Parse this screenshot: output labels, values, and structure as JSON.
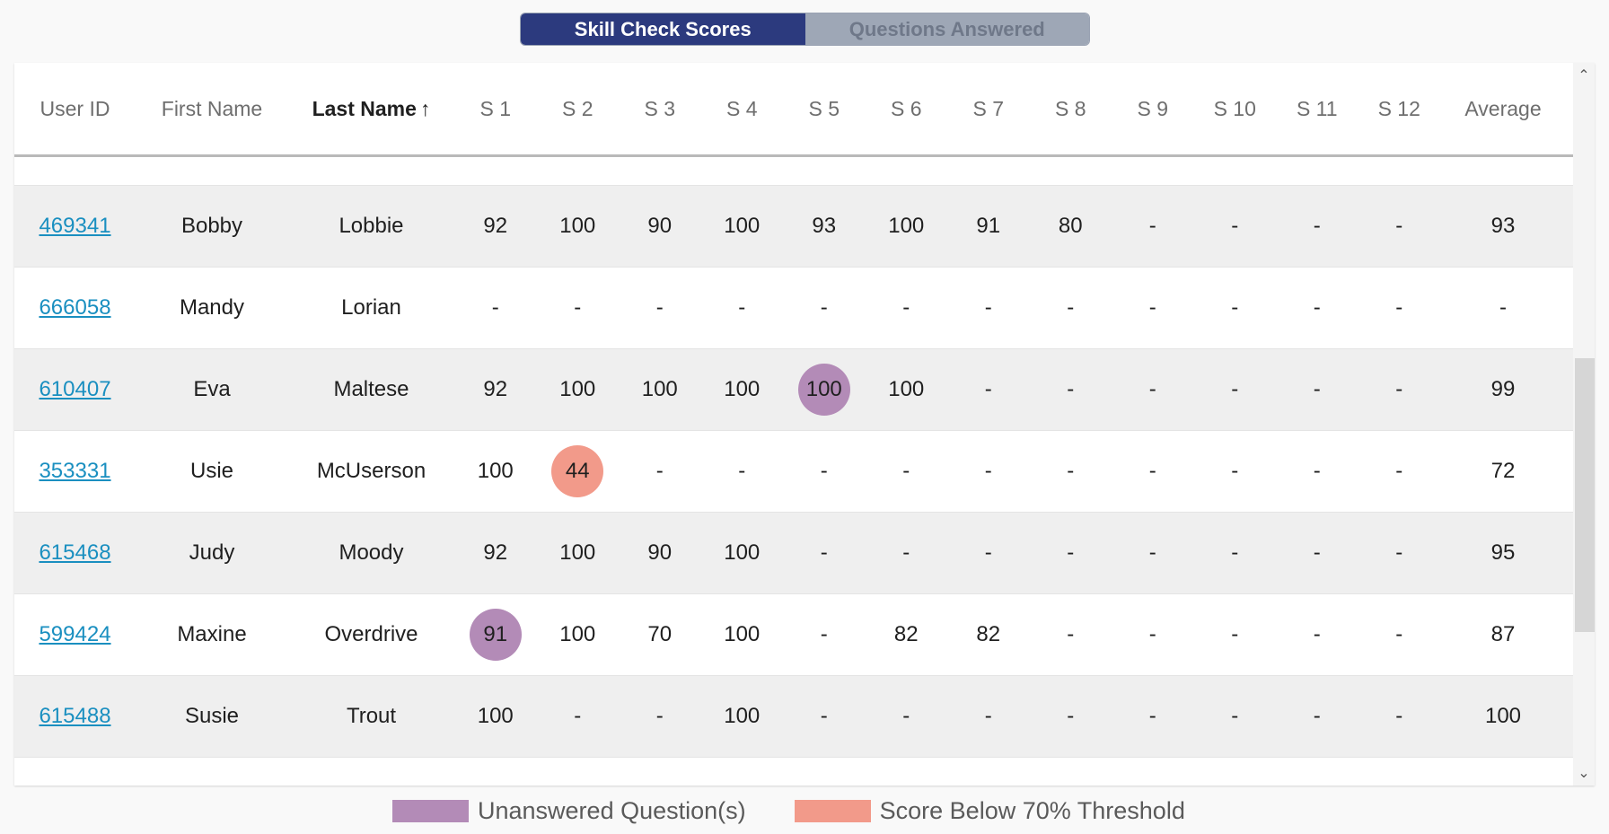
{
  "toggle": {
    "active_label": "Skill Check Scores",
    "inactive_label": "Questions Answered"
  },
  "table": {
    "headers": {
      "user_id": "User ID",
      "first_name": "First Name",
      "last_name": "Last Name",
      "sort_arrow": "↑",
      "skills": [
        "S 1",
        "S 2",
        "S 3",
        "S 4",
        "S 5",
        "S 6",
        "S 7",
        "S 8",
        "S 9",
        "S 10",
        "S 11",
        "S 12"
      ],
      "average": "Average"
    },
    "rows": [
      {
        "id": "469341",
        "first": "Bobby",
        "last": "Lobbie",
        "scores": [
          "92",
          "100",
          "90",
          "100",
          "93",
          "100",
          "91",
          "80",
          "-",
          "-",
          "-",
          "-"
        ],
        "average": "93",
        "flags": {}
      },
      {
        "id": "666058",
        "first": "Mandy",
        "last": "Lorian",
        "scores": [
          "-",
          "-",
          "-",
          "-",
          "-",
          "-",
          "-",
          "-",
          "-",
          "-",
          "-",
          "-"
        ],
        "average": "-",
        "flags": {}
      },
      {
        "id": "610407",
        "first": "Eva",
        "last": "Maltese",
        "scores": [
          "92",
          "100",
          "100",
          "100",
          "100",
          "100",
          "-",
          "-",
          "-",
          "-",
          "-",
          "-"
        ],
        "average": "99",
        "flags": {
          "4": "unanswered"
        }
      },
      {
        "id": "353331",
        "first": "Usie",
        "last": "McUserson",
        "scores": [
          "100",
          "44",
          "-",
          "-",
          "-",
          "-",
          "-",
          "-",
          "-",
          "-",
          "-",
          "-"
        ],
        "average": "72",
        "flags": {
          "1": "below"
        }
      },
      {
        "id": "615468",
        "first": "Judy",
        "last": "Moody",
        "scores": [
          "92",
          "100",
          "90",
          "100",
          "-",
          "-",
          "-",
          "-",
          "-",
          "-",
          "-",
          "-"
        ],
        "average": "95",
        "flags": {}
      },
      {
        "id": "599424",
        "first": "Maxine",
        "last": "Overdrive",
        "scores": [
          "91",
          "100",
          "70",
          "100",
          "-",
          "82",
          "82",
          "-",
          "-",
          "-",
          "-",
          "-"
        ],
        "average": "87",
        "flags": {
          "0": "unanswered"
        }
      },
      {
        "id": "615488",
        "first": "Susie",
        "last": "Trout",
        "scores": [
          "100",
          "-",
          "-",
          "100",
          "-",
          "-",
          "-",
          "-",
          "-",
          "-",
          "-",
          "-"
        ],
        "average": "100",
        "flags": {}
      }
    ]
  },
  "legend": {
    "unanswered": "Unanswered Question(s)",
    "below": "Score Below 70% Threshold"
  },
  "colors": {
    "toggle_active": "#2c3a7e",
    "link": "#1a8fc0",
    "unanswered": "#b38bb7",
    "below_threshold": "#f29a8a"
  }
}
